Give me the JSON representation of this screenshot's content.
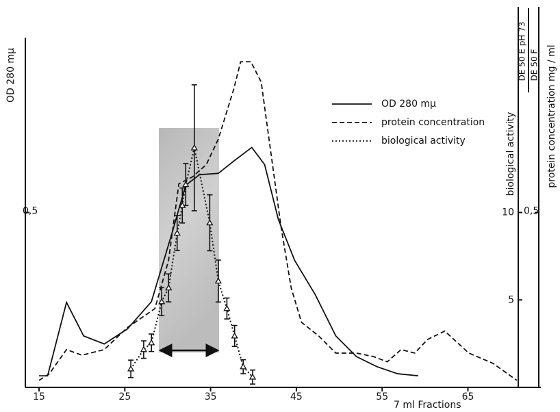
{
  "chart_data": {
    "type": "line",
    "y_label": "OD 280 mμ",
    "x_label": "7 ml  Fractions",
    "y2_label": "biological activity",
    "y3_label": "protein concentration  mg / ml",
    "y2_header": [
      "DE 50 E pH 73",
      "DE 50 F"
    ],
    "xlim": [
      13.4,
      73.5
    ],
    "xticks": [
      15,
      25,
      35,
      45,
      55,
      65
    ],
    "ylim": [
      0,
      1
    ],
    "yticks": [
      {
        "value": 0.5,
        "label": "0,5"
      }
    ],
    "y2lim": [
      0,
      20
    ],
    "y2ticks": [
      5,
      10
    ],
    "y3lim": [
      0,
      1
    ],
    "y3ticks": [
      {
        "value": 0.5,
        "label": "0,5"
      }
    ],
    "legend": "upper right",
    "series": [
      {
        "name": "OD 280 mμ",
        "color": "#111111",
        "dash": "solid",
        "x": [
          15,
          16.0,
          18.2,
          20.2,
          22.6,
          25.3,
          28.1,
          30.5,
          32.1,
          33.7,
          35.9,
          37.7,
          39.8,
          41.3,
          42.9,
          44.8,
          47.2,
          49.6,
          52.0,
          54.4,
          56.8,
          59.2
        ],
        "values": [
          0.033,
          0.033,
          0.243,
          0.147,
          0.124,
          0.167,
          0.245,
          0.441,
          0.578,
          0.608,
          0.612,
          0.647,
          0.686,
          0.637,
          0.48,
          0.363,
          0.265,
          0.147,
          0.088,
          0.059,
          0.039,
          0.033
        ]
      },
      {
        "name": "protein concentration",
        "color": "#111111",
        "dash": "dashed",
        "axis": "y3",
        "x": [
          15,
          16.2,
          18.2,
          20.0,
          22.6,
          25.3,
          28.5,
          30.1,
          31.3,
          32.9,
          34.5,
          35.9,
          37.7,
          38.5,
          39.7,
          40.9,
          42.0,
          43.2,
          44.4,
          45.6,
          47.6,
          49.6,
          52.0,
          54.0,
          55.6,
          57.2,
          58.8,
          60.3,
          62.3,
          65.1,
          67.9,
          70.7
        ],
        "values": [
          0.02,
          0.039,
          0.108,
          0.092,
          0.108,
          0.171,
          0.225,
          0.363,
          0.582,
          0.602,
          0.637,
          0.71,
          0.853,
          0.931,
          0.931,
          0.873,
          0.676,
          0.461,
          0.284,
          0.186,
          0.147,
          0.098,
          0.098,
          0.088,
          0.073,
          0.108,
          0.098,
          0.137,
          0.161,
          0.098,
          0.069,
          0.02
        ]
      },
      {
        "name": "biological activity",
        "color": "#111111",
        "dash": "dotted",
        "axis": "y2",
        "marker": "triangle",
        "x": [
          25.7,
          27.2,
          28.1,
          29.3,
          30.1,
          31.1,
          31.7,
          32.1,
          33.1,
          34.9,
          35.9,
          36.9,
          37.8,
          38.8,
          39.9
        ],
        "values": [
          1.06,
          2.16,
          2.55,
          4.9,
          5.69,
          8.82,
          10.4,
          11.6,
          13.7,
          9.41,
          6.08,
          4.51,
          2.94,
          1.18,
          0.59
        ],
        "errors": [
          0.5,
          0.5,
          0.5,
          0.8,
          0.8,
          1.0,
          1.0,
          1.2,
          3.6,
          1.6,
          1.2,
          0.6,
          0.6,
          0.4,
          0.4
        ]
      }
    ]
  }
}
